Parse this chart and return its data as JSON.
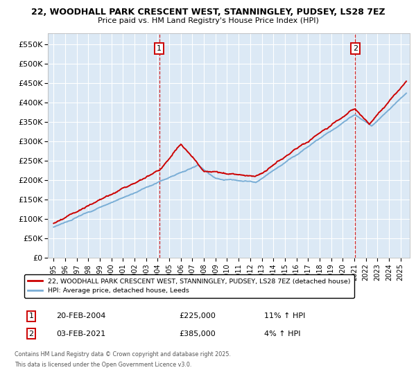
{
  "title_line1": "22, WOODHALL PARK CRESCENT WEST, STANNINGLEY, PUDSEY, LS28 7EZ",
  "title_line2": "Price paid vs. HM Land Registry's House Price Index (HPI)",
  "legend_label1": "22, WOODHALL PARK CRESCENT WEST, STANNINGLEY, PUDSEY, LS28 7EZ (detached house)",
  "legend_label2": "HPI: Average price, detached house, Leeds",
  "ann1_label": "1",
  "ann1_date": "20-FEB-2004",
  "ann1_price": "£225,000",
  "ann1_hpi": "11% ↑ HPI",
  "ann1_x_year": 2004.13,
  "ann2_label": "2",
  "ann2_date": "03-FEB-2021",
  "ann2_price": "£385,000",
  "ann2_hpi": "4% ↑ HPI",
  "ann2_x_year": 2021.09,
  "footer_line1": "Contains HM Land Registry data © Crown copyright and database right 2025.",
  "footer_line2": "This data is licensed under the Open Government Licence v3.0.",
  "ylim": [
    0,
    580000
  ],
  "yticks": [
    0,
    50000,
    100000,
    150000,
    200000,
    250000,
    300000,
    350000,
    400000,
    450000,
    500000,
    550000
  ],
  "ytick_labels": [
    "£0",
    "£50K",
    "£100K",
    "£150K",
    "£200K",
    "£250K",
    "£300K",
    "£350K",
    "£400K",
    "£450K",
    "£500K",
    "£550K"
  ],
  "xlim_left": 1994.5,
  "xlim_right": 2025.8,
  "xticks": [
    1995,
    1996,
    1997,
    1998,
    1999,
    2000,
    2001,
    2002,
    2003,
    2004,
    2005,
    2006,
    2007,
    2008,
    2009,
    2010,
    2011,
    2012,
    2013,
    2014,
    2015,
    2016,
    2017,
    2018,
    2019,
    2020,
    2021,
    2022,
    2023,
    2024,
    2025
  ],
  "bg_color": "#dce9f5",
  "red_color": "#cc0000",
  "blue_color": "#7aaed6",
  "grid_color": "#ffffff"
}
